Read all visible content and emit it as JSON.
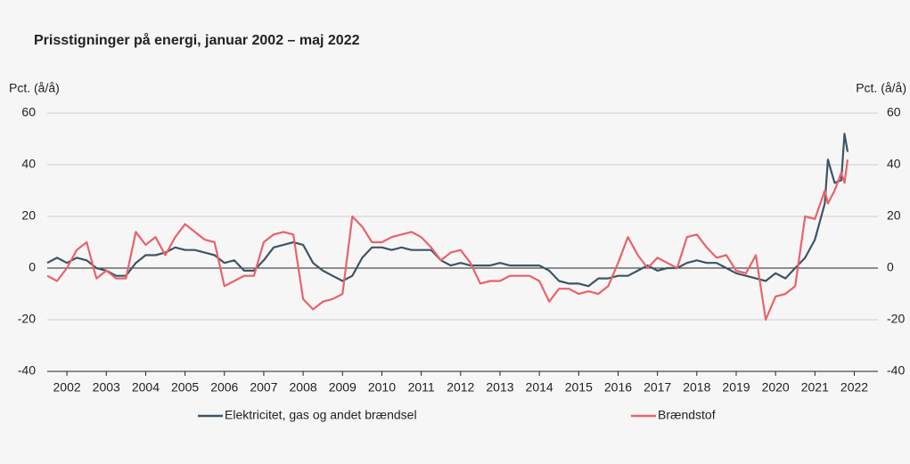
{
  "chart_data": {
    "type": "line",
    "title": "Prisstigninger på energi, januar 2002 – maj 2022",
    "y_label": "Pct. (å/å)",
    "y2_label": "Pct. (å/å)",
    "x": [
      2002,
      2002.25,
      2002.5,
      2002.75,
      2003,
      2003.25,
      2003.5,
      2003.75,
      2004,
      2004.25,
      2004.5,
      2004.75,
      2005,
      2005.25,
      2005.5,
      2005.75,
      2006,
      2006.25,
      2006.5,
      2006.75,
      2007,
      2007.25,
      2007.5,
      2007.75,
      2008,
      2008.25,
      2008.5,
      2008.75,
      2009,
      2009.25,
      2009.5,
      2009.75,
      2010,
      2010.25,
      2010.5,
      2010.75,
      2011,
      2011.25,
      2011.5,
      2011.75,
      2012,
      2012.25,
      2012.5,
      2012.75,
      2013,
      2013.25,
      2013.5,
      2013.75,
      2014,
      2014.25,
      2014.5,
      2014.75,
      2015,
      2015.25,
      2015.5,
      2015.75,
      2016,
      2016.25,
      2016.5,
      2016.75,
      2017,
      2017.25,
      2017.5,
      2017.75,
      2018,
      2018.25,
      2018.5,
      2018.75,
      2019,
      2019.25,
      2019.5,
      2019.75,
      2020,
      2020.25,
      2020.5,
      2020.75,
      2021,
      2021.25,
      2021.5,
      2021.75,
      2021.83,
      2022,
      2022.17,
      2022.25,
      2022.33
    ],
    "series": [
      {
        "name": "Elektricitet, gas og andet brændsel",
        "color": "#3d5566",
        "values": [
          2,
          4,
          2,
          4,
          3,
          0,
          -1,
          -3,
          -3,
          2,
          5,
          5,
          6,
          8,
          7,
          7,
          6,
          5,
          2,
          3,
          -1,
          -1,
          3,
          8,
          9,
          10,
          9,
          2,
          -1,
          -3,
          -5,
          -3,
          4,
          8,
          8,
          7,
          8,
          7,
          7,
          7,
          3,
          1,
          2,
          1,
          1,
          1,
          2,
          1,
          1,
          1,
          1,
          -1,
          -5,
          -6,
          -6,
          -7,
          -4,
          -4,
          -3,
          -3,
          -1,
          1,
          -1,
          0,
          0,
          2,
          3,
          2,
          2,
          0,
          -2,
          -3,
          -4,
          -5,
          -2,
          -4,
          0,
          4,
          11,
          25,
          42,
          33,
          34,
          52,
          45
        ]
      },
      {
        "name": "Brændstof",
        "color": "#e8636b",
        "values": [
          -3,
          -5,
          0,
          7,
          10,
          -4,
          -1,
          -4,
          -4,
          14,
          9,
          12,
          5,
          12,
          17,
          14,
          11,
          10,
          -7,
          -5,
          -3,
          -3,
          10,
          13,
          14,
          13,
          -12,
          -16,
          -13,
          -12,
          -10,
          20,
          16,
          10,
          10,
          12,
          13,
          14,
          12,
          8,
          3,
          6,
          7,
          2,
          -6,
          -5,
          -5,
          -3,
          -3,
          -3,
          -5,
          -13,
          -8,
          -8,
          -10,
          -9,
          -10,
          -7,
          2,
          12,
          5,
          0,
          4,
          2,
          0,
          12,
          13,
          8,
          4,
          5,
          -1,
          -2,
          5,
          -20,
          -11,
          -10,
          -7,
          20,
          19,
          30,
          25,
          30,
          37,
          33,
          42
        ]
      }
    ],
    "xlim": [
      2002,
      2023.1
    ],
    "xticks": [
      {
        "value": 2002.5,
        "label": "2002"
      },
      {
        "value": 2003.5,
        "label": "2003"
      },
      {
        "value": 2004.5,
        "label": "2004"
      },
      {
        "value": 2005.5,
        "label": "2005"
      },
      {
        "value": 2006.5,
        "label": "2006"
      },
      {
        "value": 2007.5,
        "label": "2007"
      },
      {
        "value": 2008.5,
        "label": "2008"
      },
      {
        "value": 2009.5,
        "label": "2009"
      },
      {
        "value": 2010.5,
        "label": "2010"
      },
      {
        "value": 2011.5,
        "label": "2011"
      },
      {
        "value": 2012.5,
        "label": "2012"
      },
      {
        "value": 2013.5,
        "label": "2013"
      },
      {
        "value": 2014.5,
        "label": "2014"
      },
      {
        "value": 2015.5,
        "label": "2015"
      },
      {
        "value": 2016.5,
        "label": "2016"
      },
      {
        "value": 2017.5,
        "label": "2017"
      },
      {
        "value": 2018.5,
        "label": "2018"
      },
      {
        "value": 2019.5,
        "label": "2019"
      },
      {
        "value": 2020.5,
        "label": "2020"
      },
      {
        "value": 2021.5,
        "label": "2021"
      },
      {
        "value": 2022.5,
        "label": "2022"
      }
    ],
    "ylim": [
      -40,
      60
    ],
    "yticks": [
      -40,
      -20,
      0,
      20,
      40,
      60
    ],
    "y2lim": [
      -40,
      60
    ],
    "y2ticks": [
      -40,
      -20,
      0,
      20,
      40,
      60
    ],
    "grid": true,
    "legend": "bottom"
  }
}
